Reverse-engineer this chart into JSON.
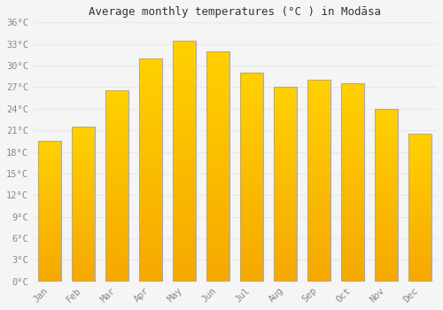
{
  "months": [
    "Jan",
    "Feb",
    "Mar",
    "Apr",
    "May",
    "Jun",
    "Jul",
    "Aug",
    "Sep",
    "Oct",
    "Nov",
    "Dec"
  ],
  "temperatures": [
    19.5,
    21.5,
    26.5,
    31.0,
    33.5,
    32.0,
    29.0,
    27.0,
    28.0,
    27.5,
    24.0,
    20.5
  ],
  "title": "Average monthly temperatures (°C ) in Modāsa",
  "bar_color_bottom": "#F5A800",
  "bar_color_top": "#FFD060",
  "bar_edge_color": "#AAAAAA",
  "background_color": "#F5F5F5",
  "grid_color": "#E8E8E8",
  "ytick_step": 3,
  "ymax": 36,
  "ymin": 0,
  "tick_label_color": "#888888",
  "title_color": "#333333",
  "font_family": "monospace",
  "bar_width": 0.7,
  "n_grad": 80
}
